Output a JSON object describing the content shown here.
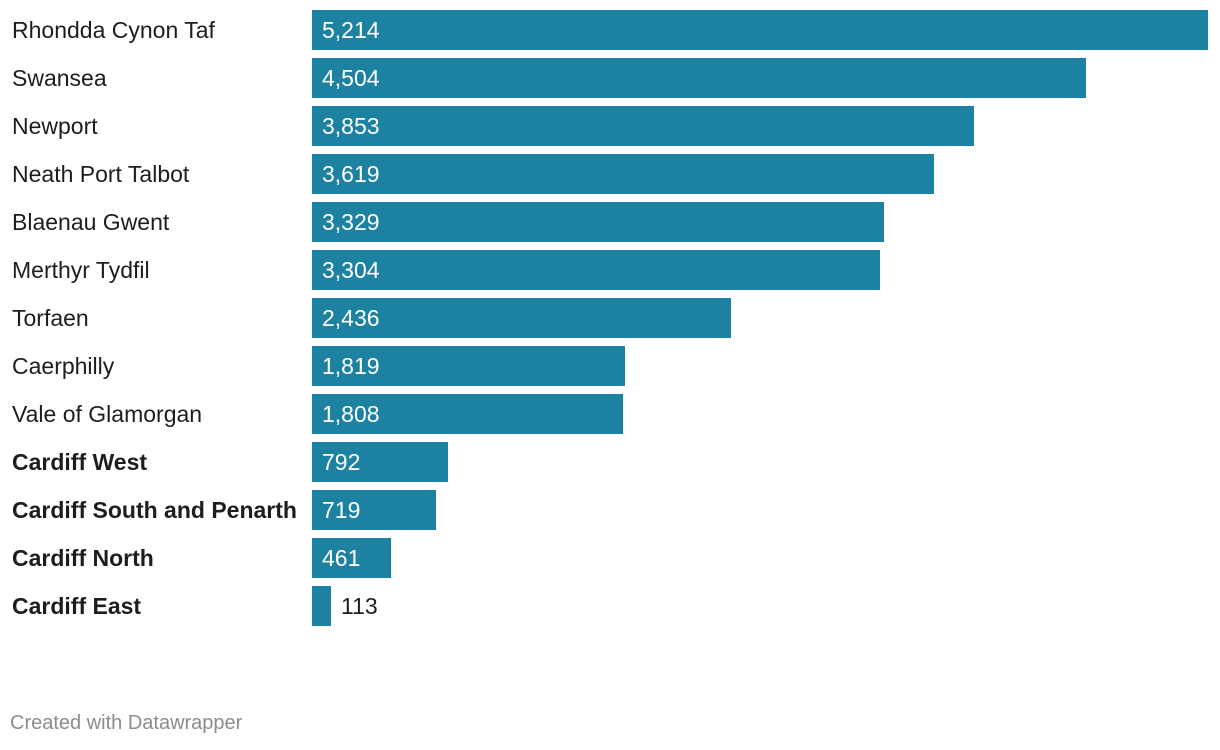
{
  "chart_data": {
    "type": "bar",
    "orientation": "horizontal",
    "categories": [
      "Rhondda Cynon Taf",
      "Swansea",
      "Newport",
      "Neath Port Talbot",
      "Blaenau Gwent",
      "Merthyr Tydfil",
      "Torfaen",
      "Caerphilly",
      "Vale of Glamorgan",
      "Cardiff West",
      "Cardiff South and Penarth",
      "Cardiff North",
      "Cardiff East"
    ],
    "values": [
      5214,
      4504,
      3853,
      3619,
      3329,
      3304,
      2436,
      1819,
      1808,
      792,
      719,
      461,
      113
    ],
    "value_labels": [
      "5,214",
      "4,504",
      "3,853",
      "3,619",
      "3,329",
      "3,304",
      "2,436",
      "1,819",
      "1,808",
      "792",
      "719",
      "461",
      "113"
    ],
    "bold_categories": [
      "Cardiff West",
      "Cardiff South and Penarth",
      "Cardiff North",
      "Cardiff East"
    ],
    "xlim": [
      0,
      5214
    ],
    "grid": false,
    "bar_color": "#1d81a2"
  },
  "footer": {
    "credit": "Created with Datawrapper"
  }
}
